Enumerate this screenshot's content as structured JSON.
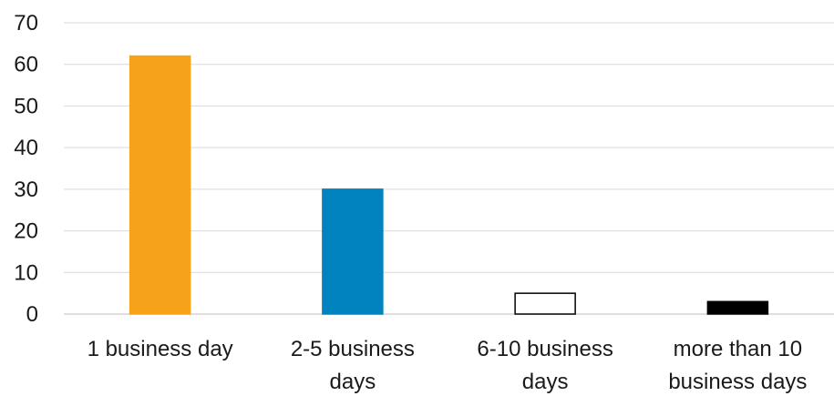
{
  "chart_data": {
    "type": "bar",
    "title": "",
    "xlabel": "",
    "ylabel": "",
    "ylim": [
      0,
      70
    ],
    "yticks": [
      "0",
      "10",
      "20",
      "30",
      "40",
      "50",
      "60",
      "70"
    ],
    "grid": true,
    "categories": [
      [
        "1 business day"
      ],
      [
        "2-5 business",
        "days"
      ],
      [
        "6-10 business",
        "days"
      ],
      [
        "more than 10",
        "business days"
      ]
    ],
    "values": [
      62,
      30,
      5,
      3
    ],
    "colors": [
      "#f7a21b",
      "#0083be",
      "#ffffff",
      "#000000"
    ],
    "outline_colors": [
      "#f7a21b",
      "#0083be",
      "#000000",
      "#000000"
    ]
  }
}
